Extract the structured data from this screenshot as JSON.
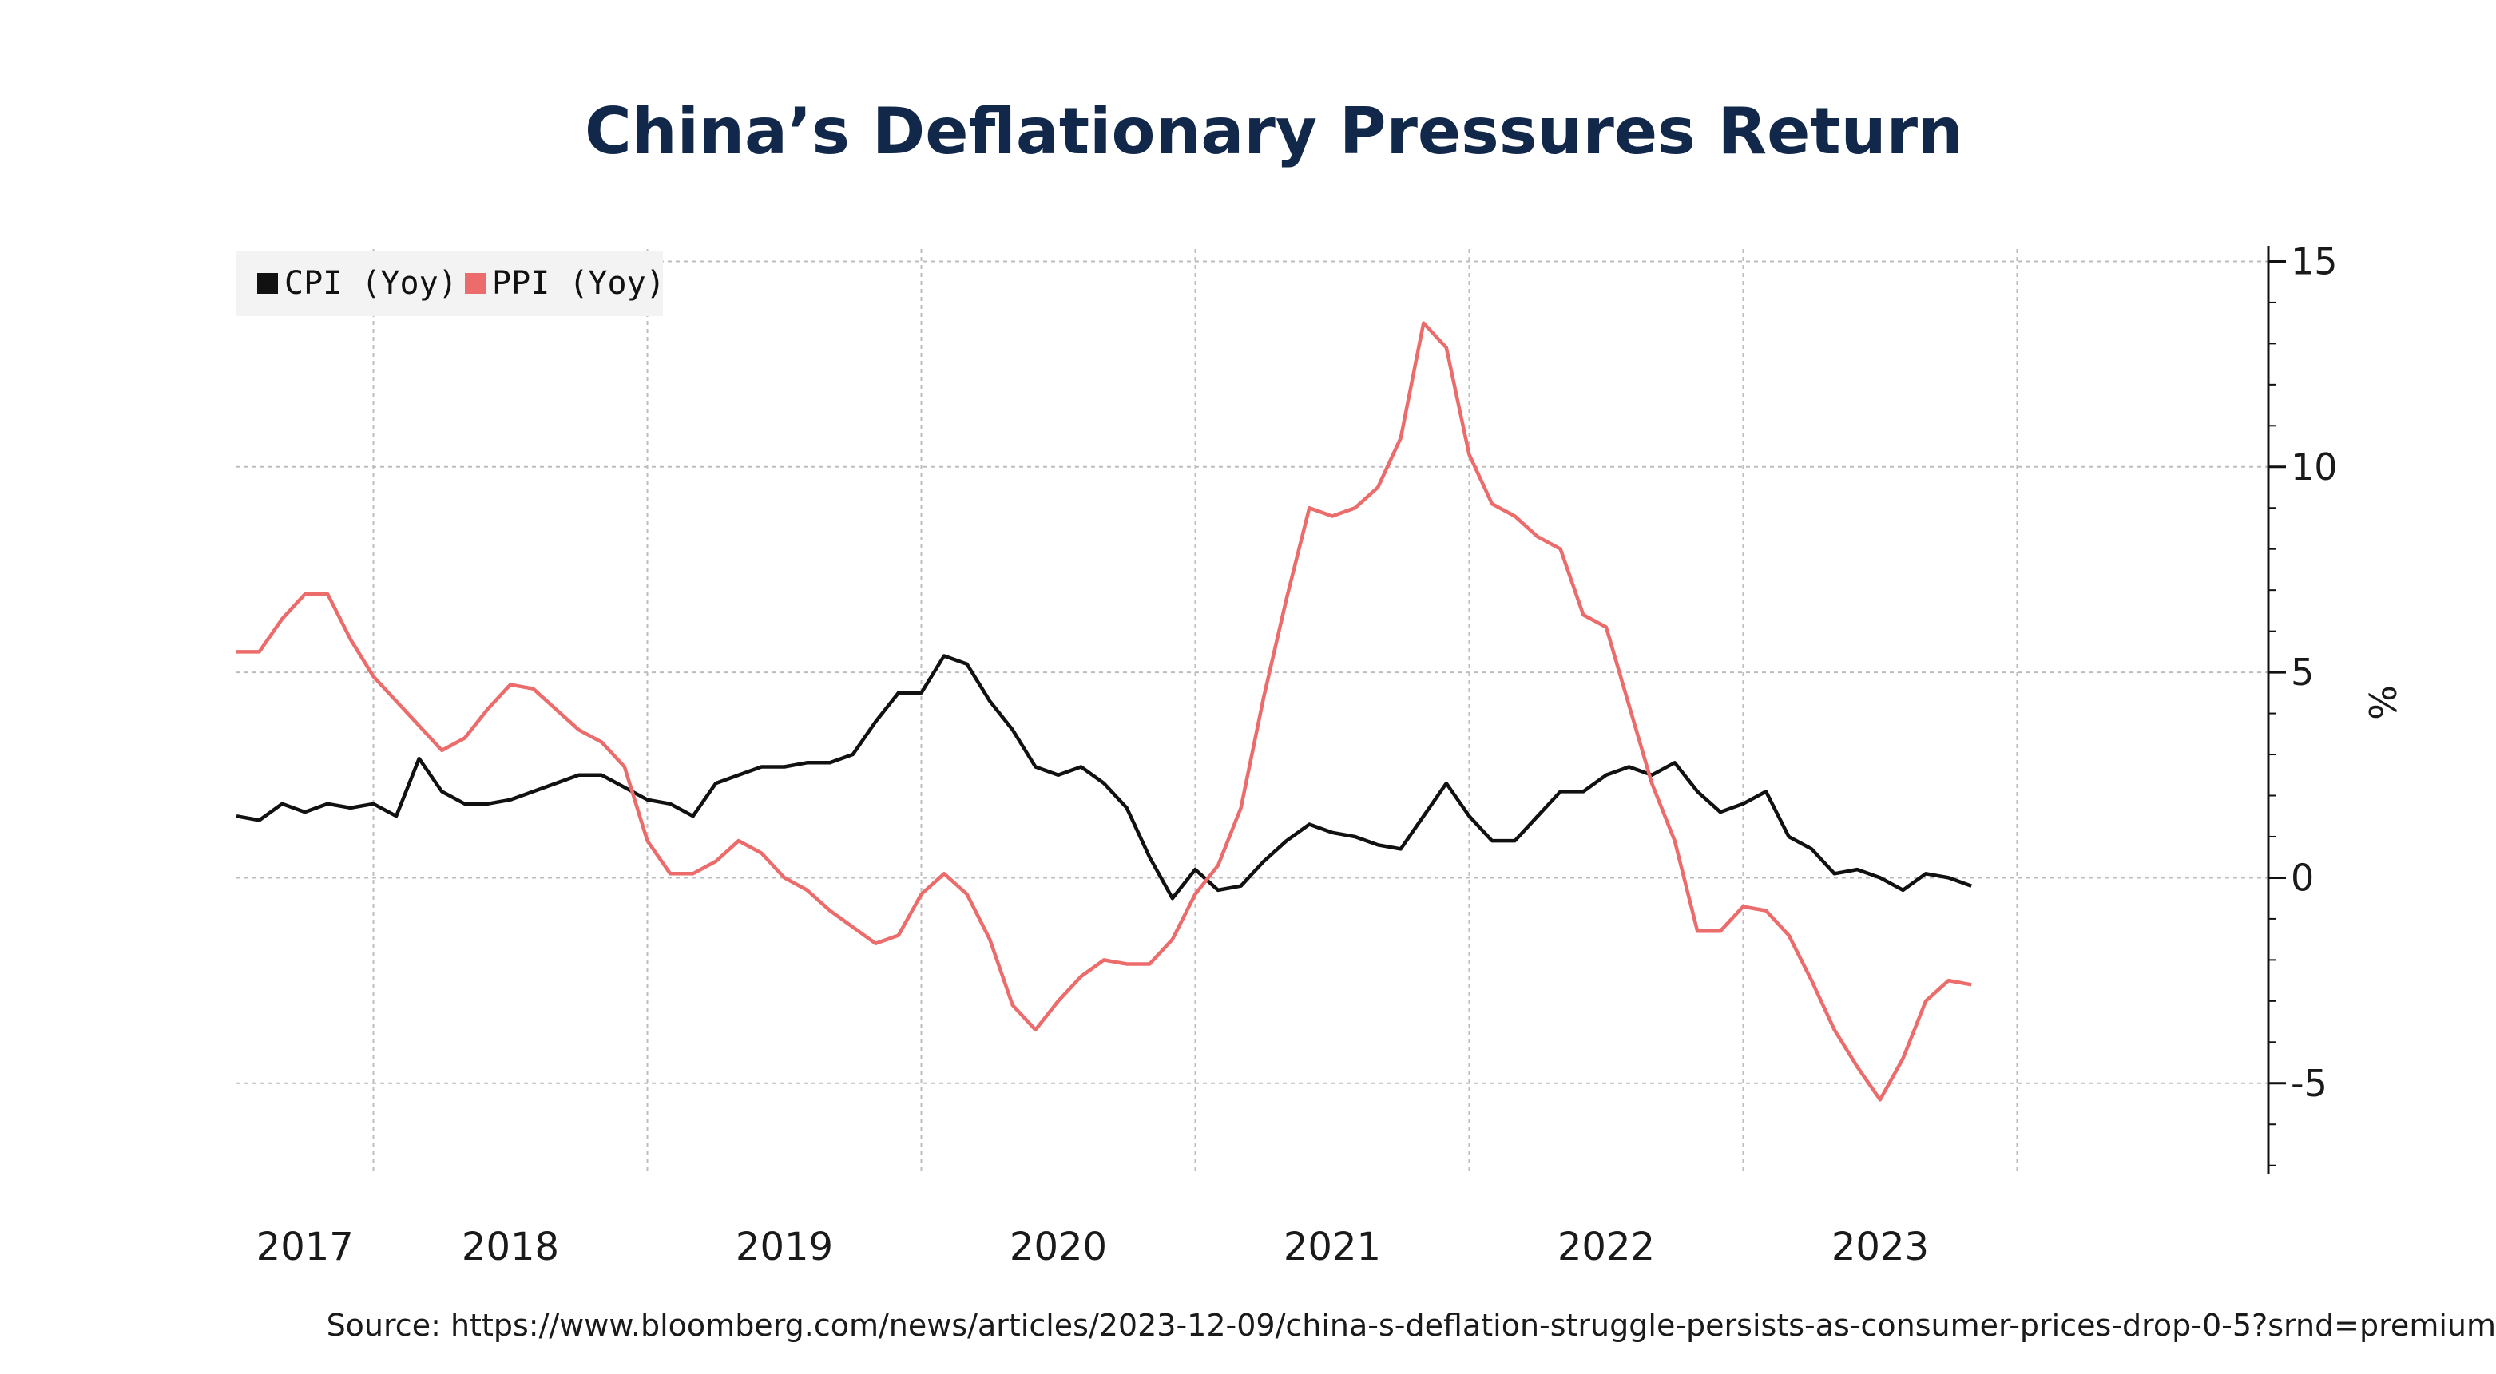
{
  "title": "China’s Deflationary Pressures Return",
  "source": "Source: https://www.bloomberg.com/news/articles/2023-12-09/china-s-deflation-struggle-persists-as-consumer-prices-drop-0-5?srnd=premium",
  "chart_data": {
    "type": "line",
    "title": "China’s Deflationary Pressures Return",
    "ylabel": "%",
    "y_axis_position": "right",
    "ylim": [
      -7.2,
      15.3
    ],
    "yticks": [
      -5,
      0,
      5,
      10,
      15
    ],
    "xlim": [
      2016.5,
      2023.917
    ],
    "xticks": [
      {
        "label": "2017",
        "pos": 2017.0
      },
      {
        "label": "2018",
        "pos": 2018.0
      },
      {
        "label": "2019",
        "pos": 2019.0
      },
      {
        "label": "2020",
        "pos": 2020.0
      },
      {
        "label": "2021",
        "pos": 2021.0
      },
      {
        "label": "2022",
        "pos": 2022.0
      },
      {
        "label": "2023",
        "pos": 2023.0
      }
    ],
    "year_labels": [
      {
        "label": "2017",
        "pos": 2016.75
      },
      {
        "label": "2018",
        "pos": 2017.5
      },
      {
        "label": "2019",
        "pos": 2018.5
      },
      {
        "label": "2020",
        "pos": 2019.5
      },
      {
        "label": "2021",
        "pos": 2020.5
      },
      {
        "label": "2022",
        "pos": 2021.5
      },
      {
        "label": "2023",
        "pos": 2022.5
      }
    ],
    "grid": true,
    "legend_position": "top-left",
    "series": [
      {
        "name": "CPI (Yoy)",
        "color": "#111111",
        "start": 2016.5,
        "step": 0.08333,
        "values": [
          1.5,
          1.4,
          1.8,
          1.6,
          1.8,
          1.7,
          1.8,
          1.5,
          2.9,
          2.1,
          1.8,
          1.8,
          1.9,
          2.1,
          2.3,
          2.5,
          2.5,
          2.2,
          1.9,
          1.8,
          1.5,
          2.3,
          2.5,
          2.7,
          2.7,
          2.8,
          2.8,
          3.0,
          3.8,
          4.5,
          4.5,
          5.4,
          5.2,
          4.3,
          3.6,
          2.7,
          2.5,
          2.7,
          2.3,
          1.7,
          0.5,
          -0.5,
          0.2,
          -0.3,
          -0.2,
          0.4,
          0.9,
          1.3,
          1.1,
          1.0,
          0.8,
          0.7,
          1.5,
          2.3,
          1.5,
          0.9,
          0.9,
          1.5,
          2.1,
          2.1,
          2.5,
          2.7,
          2.5,
          2.8,
          2.1,
          1.6,
          1.8,
          2.1,
          1.0,
          0.7,
          0.1,
          0.2,
          0.0,
          -0.3,
          0.1,
          0.0,
          -0.2
        ]
      },
      {
        "name": "PPI (Yoy)",
        "color": "#ec6b6b",
        "start": 2016.5,
        "step": 0.08333,
        "values": [
          5.5,
          5.5,
          6.3,
          6.9,
          6.9,
          5.8,
          4.9,
          4.3,
          3.7,
          3.1,
          3.4,
          4.1,
          4.7,
          4.6,
          4.1,
          3.6,
          3.3,
          2.7,
          0.9,
          0.1,
          0.1,
          0.4,
          0.9,
          0.6,
          0.0,
          -0.3,
          -0.8,
          -1.2,
          -1.6,
          -1.4,
          -0.4,
          0.1,
          -0.4,
          -1.5,
          -3.1,
          -3.7,
          -3.0,
          -2.4,
          -2.0,
          -2.1,
          -2.1,
          -1.5,
          -0.4,
          0.3,
          1.7,
          4.4,
          6.8,
          9.0,
          8.8,
          9.0,
          9.5,
          10.7,
          13.5,
          12.9,
          10.3,
          9.1,
          8.8,
          8.3,
          8.0,
          6.4,
          6.1,
          4.2,
          2.3,
          0.9,
          -1.3,
          -1.3,
          -0.7,
          -0.8,
          -1.4,
          -2.5,
          -3.7,
          -4.6,
          -5.4,
          -4.4,
          -3.0,
          -2.5,
          -2.6
        ]
      }
    ]
  }
}
